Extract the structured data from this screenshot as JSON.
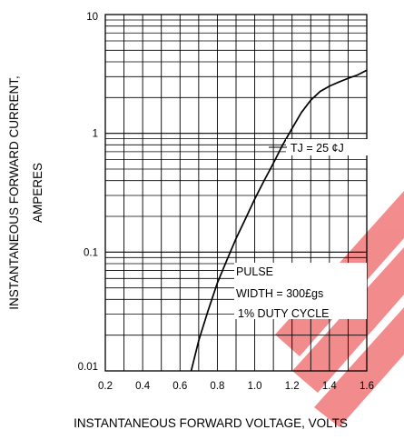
{
  "chart_data": {
    "type": "line",
    "xlabel": "INSTANTANEOUS FORWARD VOLTAGE, VOLTS",
    "ylabel": [
      "INSTANTANEOUS FORWARD CURRENT,",
      "AMPERES"
    ],
    "x_ticks": [
      "0.2",
      "0.4",
      "0.6",
      "0.8",
      "1.0",
      "1.2",
      "1.4",
      "1.6"
    ],
    "y_ticks": [
      "10",
      "1",
      "0.1",
      "0.01"
    ],
    "xlim": [
      0.2,
      1.6
    ],
    "ylim": [
      0.01,
      10
    ],
    "yscale": "log",
    "grid": true,
    "series": [
      {
        "x": [
          0.66,
          0.7,
          0.75,
          0.8,
          0.85,
          0.9,
          0.95,
          1.0,
          1.05,
          1.1,
          1.15,
          1.2,
          1.25,
          1.3,
          1.35,
          1.4,
          1.45,
          1.5,
          1.55,
          1.6
        ],
        "y": [
          0.01,
          0.018,
          0.032,
          0.055,
          0.085,
          0.13,
          0.19,
          0.28,
          0.4,
          0.56,
          0.8,
          1.1,
          1.5,
          1.9,
          2.25,
          2.5,
          2.7,
          2.9,
          3.1,
          3.4
        ]
      }
    ],
    "annotations": [
      "TJ = 25 ¢J",
      "PULSE",
      "WIDTH = 300£gs",
      "1% DUTY CYCLE"
    ]
  },
  "colors": {
    "curve": "#000000",
    "grid": "#000000",
    "watermark": "#f07070"
  }
}
